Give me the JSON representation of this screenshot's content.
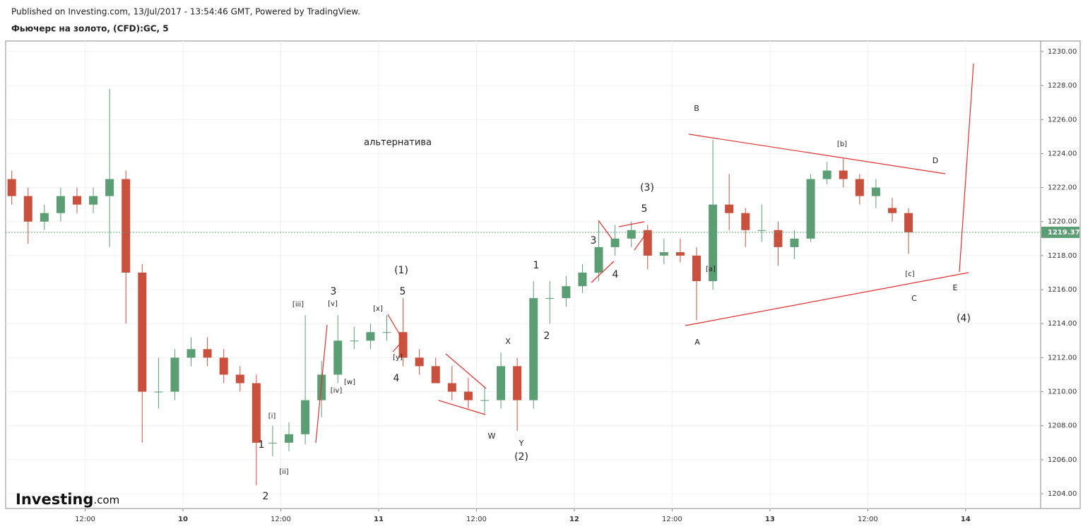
{
  "header": {
    "published": "Published on Investing.com, 13/Jul/2017 - 13:54:46 GMT, Powered by TradingView.",
    "symbol": "Фьючерс на золото, (CFD):GC, 5",
    "logo": "Investing",
    "logo_suffix": ".com"
  },
  "chart_data": {
    "type": "candlestick",
    "x": [
      3,
      5,
      7,
      9,
      11,
      13,
      15,
      17,
      19,
      21,
      23,
      25,
      27,
      29,
      31,
      33,
      35,
      37,
      39,
      41,
      43,
      45,
      47,
      49,
      51,
      53,
      55,
      57,
      59,
      61,
      63,
      65,
      67,
      69,
      71,
      73,
      75,
      77,
      79,
      81,
      83,
      85,
      87,
      89,
      91,
      93,
      95,
      97,
      99,
      101,
      103,
      105,
      107,
      109,
      111,
      113
    ],
    "open": [
      1222.5,
      1221.5,
      1220,
      1220.5,
      1221.5,
      1221,
      1221.5,
      1222.5,
      1217,
      1210,
      1210,
      1212,
      1212.5,
      1212,
      1211,
      1210.5,
      1207,
      1207,
      1207.5,
      1209.5,
      1211,
      1213,
      1213,
      1213.5,
      1213.5,
      1212,
      1211.5,
      1210.5,
      1210,
      1209.5,
      1209.5,
      1211.5,
      1209.5,
      1215.5,
      1215.5,
      1216.2,
      1217,
      1218.5,
      1219,
      1219.5,
      1218,
      1218.2,
      1218,
      1216.5,
      1221,
      1220.5,
      1219.5,
      1219.5,
      1218.5,
      1219,
      1222.5,
      1223,
      1222.5,
      1221.5,
      1220.8,
      1220.5
    ],
    "high": [
      1223,
      1222,
      1221,
      1222,
      1222,
      1222,
      1227.8,
      1223,
      1217.5,
      1212,
      1212.5,
      1213.2,
      1213.2,
      1212.5,
      1211.5,
      1211,
      1208,
      1208.2,
      1214.5,
      1211.8,
      1214.5,
      1213.8,
      1214,
      1214.5,
      1215.5,
      1212.5,
      1212,
      1211.5,
      1210.8,
      1210.3,
      1212.3,
      1212,
      1216.5,
      1216.5,
      1216.8,
      1217.5,
      1220,
      1219.8,
      1220,
      1219.8,
      1219,
      1219,
      1218.5,
      1224.8,
      1222.8,
      1220.8,
      1221,
      1220,
      1219.5,
      1222.8,
      1223.5,
      1223.7,
      1222.8,
      1222.5,
      1221.4,
      1220.8
    ],
    "low": [
      1221,
      1218.7,
      1219.5,
      1220,
      1220.5,
      1220.5,
      1218.5,
      1214,
      1207,
      1209,
      1209.5,
      1211.5,
      1211.5,
      1210.5,
      1210,
      1204.5,
      1206.2,
      1206.5,
      1206.9,
      1208.5,
      1210.5,
      1212.5,
      1212.5,
      1213,
      1211.5,
      1211,
      1210.5,
      1209.5,
      1209,
      1208.7,
      1209,
      1207.7,
      1209,
      1214,
      1215,
      1215.8,
      1216.5,
      1218,
      1218.5,
      1217.2,
      1217.5,
      1217.6,
      1214.2,
      1216,
      1219.5,
      1218.5,
      1218.8,
      1217.4,
      1217.8,
      1218.8,
      1222.2,
      1222,
      1221,
      1220.8,
      1220,
      1218.1
    ],
    "close": [
      1221.5,
      1220,
      1220.5,
      1221.5,
      1221,
      1221.5,
      1222.5,
      1217,
      1210,
      1210,
      1212,
      1212.5,
      1212,
      1211,
      1210.5,
      1207,
      1207,
      1207.5,
      1209.5,
      1211,
      1213,
      1213,
      1213.5,
      1213.5,
      1212,
      1211.5,
      1210.5,
      1210,
      1209.5,
      1209.5,
      1211.5,
      1209.5,
      1215.5,
      1215.5,
      1216.2,
      1217,
      1218.5,
      1219,
      1219.5,
      1218,
      1218.2,
      1218,
      1216.5,
      1221,
      1220.5,
      1219.5,
      1219.5,
      1218.5,
      1219,
      1222.5,
      1223,
      1222.5,
      1221.5,
      1222,
      1220.5,
      1219.37
    ],
    "up_color": "#5b9e73",
    "down_color": "#c8503c",
    "last_price": 1219.37,
    "last_price_color": "#5b9e73",
    "xlim": [
      2.25,
      129.2
    ],
    "xticks": [
      {
        "value": 12,
        "label": "12:00"
      },
      {
        "value": 24,
        "label": "10"
      },
      {
        "value": 36,
        "label": "12:00"
      },
      {
        "value": 48,
        "label": "11"
      },
      {
        "value": 60,
        "label": "12:00"
      },
      {
        "value": 72,
        "label": "12"
      },
      {
        "value": 84,
        "label": "12:00"
      },
      {
        "value": 96,
        "label": "13"
      },
      {
        "value": 108,
        "label": "12:00"
      },
      {
        "value": 120,
        "label": "14"
      }
    ],
    "ylim": [
      1203.13,
      1230.62
    ],
    "yticks": [
      {
        "value": 1204,
        "label": "1204.00"
      },
      {
        "value": 1206,
        "label": "1206.00"
      },
      {
        "value": 1208,
        "label": "1208.00"
      },
      {
        "value": 1210,
        "label": "1210.00"
      },
      {
        "value": 1212,
        "label": "1212.00"
      },
      {
        "value": 1214,
        "label": "1214.00"
      },
      {
        "value": 1216,
        "label": "1216.00"
      },
      {
        "value": 1218,
        "label": "1218.00"
      },
      {
        "value": 1220,
        "label": "1220.00"
      },
      {
        "value": 1222,
        "label": "1222.00"
      },
      {
        "value": 1224,
        "label": "1224.00"
      },
      {
        "value": 1226,
        "label": "1226.00"
      },
      {
        "value": 1228,
        "label": "1228.00"
      },
      {
        "value": 1230,
        "label": "1230.00"
      }
    ],
    "grid": true,
    "annotations": [
      "альтернатива",
      "(1)",
      "5",
      "3",
      "[iii]",
      "[v]",
      "[x]",
      "[iv]",
      "[w]",
      "[y]",
      "4",
      "[i]",
      "1",
      "[ii]",
      "2",
      "W",
      "X",
      "Y",
      "(2)",
      "1",
      "2",
      "3",
      "4",
      "5",
      "(3)",
      "B",
      "[a]",
      "A",
      "[b]",
      "D",
      "[c]",
      "C",
      "E",
      "(4)"
    ]
  }
}
